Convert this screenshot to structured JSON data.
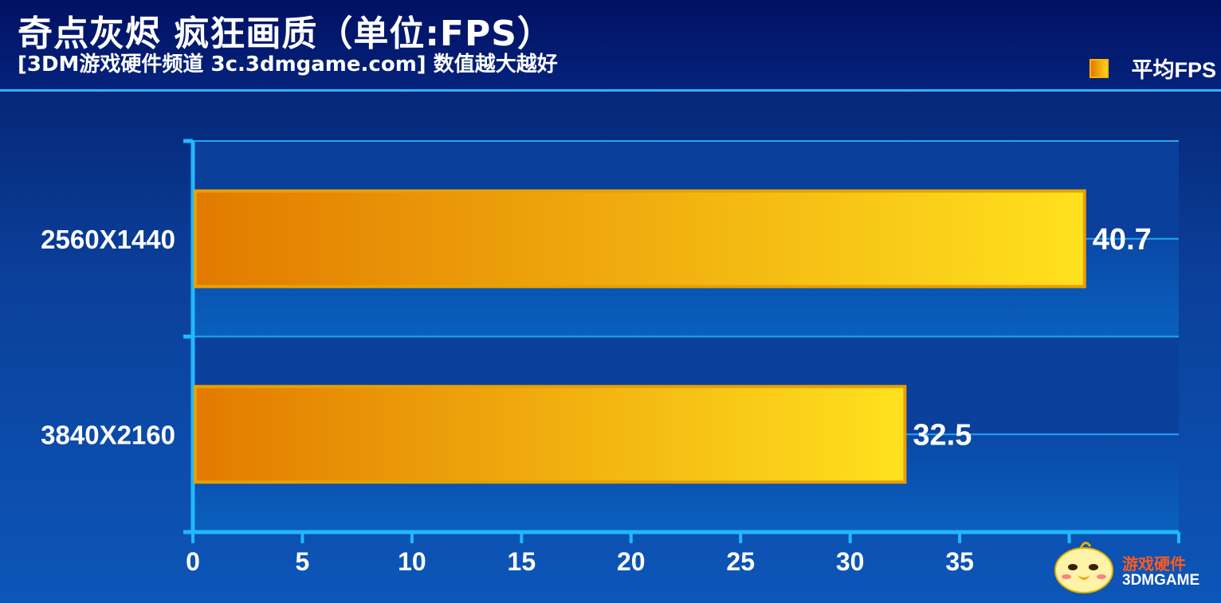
{
  "header": {
    "title": "奇点灰烬 疯狂画质（单位:FPS）",
    "subtitle": "[3DM游戏硬件频道 3c.3dmgame.com] 数值越大越好"
  },
  "legend": {
    "label": "平均FPS"
  },
  "chart_data": {
    "type": "bar",
    "orientation": "horizontal",
    "categories": [
      "2560X1440",
      "3840X2160"
    ],
    "series": [
      {
        "name": "平均FPS",
        "values": [
          40.7,
          32.5
        ]
      }
    ],
    "data_labels": [
      "40.7",
      "32.5"
    ],
    "xlim": [
      0,
      45
    ],
    "xticks": [
      0,
      5,
      10,
      15,
      20,
      25,
      30,
      35,
      40,
      45
    ],
    "xtick_labels": [
      "0",
      "5",
      "10",
      "15",
      "20",
      "25",
      "30",
      "35",
      "",
      ""
    ],
    "grid": true,
    "legend_position": "top-right",
    "colors": {
      "bar_start": "#e27a00",
      "bar_end": "#ffe11e",
      "bar_border": "#e8a000",
      "axis": "#21b8ff"
    }
  },
  "watermark": {
    "line1": "游戏硬件",
    "line2": "3DMGAME"
  }
}
